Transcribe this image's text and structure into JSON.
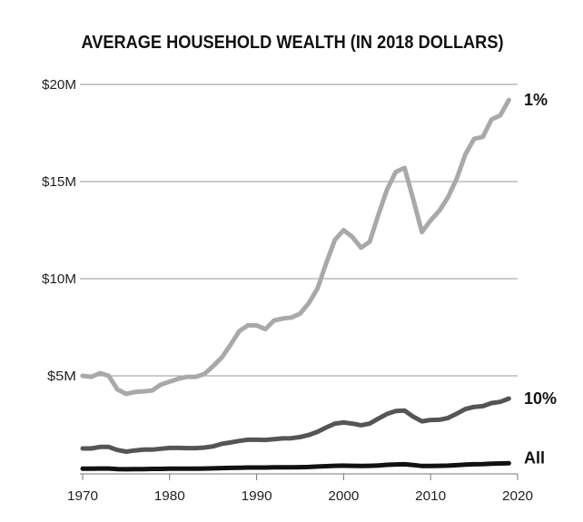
{
  "chart_data": {
    "type": "line",
    "title": "AVERAGE HOUSEHOLD WEALTH (IN 2018 DOLLARS)",
    "xlabel": "",
    "ylabel": "",
    "xlim": [
      1970,
      2020
    ],
    "ylim": [
      0,
      20
    ],
    "grid": true,
    "x_ticks": [
      1970,
      1980,
      1990,
      2000,
      2010,
      2020
    ],
    "x_tick_labels": [
      "1970",
      "1980",
      "1990",
      "2000",
      "2010",
      "2020"
    ],
    "y_ticks": [
      5,
      10,
      15,
      20
    ],
    "y_tick_labels": [
      "$5M",
      "$10M",
      "$15M",
      "$20M"
    ],
    "y_units": "millions of 2018 dollars",
    "x": [
      1970,
      1971,
      1972,
      1973,
      1974,
      1975,
      1976,
      1977,
      1978,
      1979,
      1980,
      1981,
      1982,
      1983,
      1984,
      1985,
      1986,
      1987,
      1988,
      1989,
      1990,
      1991,
      1992,
      1993,
      1994,
      1995,
      1996,
      1997,
      1998,
      1999,
      2000,
      2001,
      2002,
      2003,
      2004,
      2005,
      2006,
      2007,
      2008,
      2009,
      2010,
      2011,
      2012,
      2013,
      2014,
      2015,
      2016,
      2017,
      2018,
      2019
    ],
    "series": [
      {
        "name": "1%",
        "color": "#a9a9a9",
        "values": [
          5.0,
          4.95,
          5.14,
          5.0,
          4.3,
          4.07,
          4.17,
          4.2,
          4.25,
          4.55,
          4.7,
          4.85,
          4.95,
          4.95,
          5.1,
          5.5,
          5.95,
          6.6,
          7.3,
          7.6,
          7.6,
          7.4,
          7.85,
          7.95,
          8.0,
          8.2,
          8.75,
          9.5,
          10.8,
          12.0,
          12.5,
          12.15,
          11.6,
          11.9,
          13.3,
          14.6,
          15.5,
          15.7,
          14.1,
          12.4,
          13.0,
          13.5,
          14.2,
          15.15,
          16.4,
          17.2,
          17.3,
          18.2,
          18.4,
          19.2
        ]
      },
      {
        "name": "10%",
        "color": "#555555",
        "values": [
          1.26,
          1.26,
          1.34,
          1.34,
          1.18,
          1.1,
          1.16,
          1.2,
          1.2,
          1.25,
          1.29,
          1.29,
          1.28,
          1.28,
          1.31,
          1.37,
          1.5,
          1.57,
          1.65,
          1.71,
          1.71,
          1.7,
          1.74,
          1.78,
          1.79,
          1.85,
          1.96,
          2.12,
          2.34,
          2.54,
          2.6,
          2.54,
          2.46,
          2.54,
          2.8,
          3.04,
          3.19,
          3.21,
          2.9,
          2.66,
          2.73,
          2.74,
          2.83,
          3.05,
          3.29,
          3.4,
          3.44,
          3.6,
          3.66,
          3.83
        ]
      },
      {
        "name": "All",
        "color": "#111111",
        "values": [
          0.22,
          0.22,
          0.23,
          0.23,
          0.2,
          0.19,
          0.2,
          0.2,
          0.21,
          0.21,
          0.22,
          0.22,
          0.22,
          0.22,
          0.23,
          0.24,
          0.25,
          0.26,
          0.27,
          0.28,
          0.28,
          0.28,
          0.29,
          0.29,
          0.29,
          0.3,
          0.31,
          0.33,
          0.35,
          0.37,
          0.38,
          0.37,
          0.36,
          0.37,
          0.39,
          0.42,
          0.44,
          0.45,
          0.41,
          0.36,
          0.36,
          0.37,
          0.38,
          0.4,
          0.43,
          0.45,
          0.46,
          0.48,
          0.49,
          0.5
        ]
      }
    ],
    "legend": "line-end labels at right"
  }
}
